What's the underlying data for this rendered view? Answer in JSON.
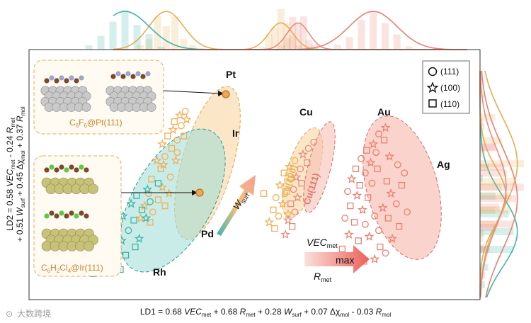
{
  "chart_data": {
    "type": "scatter",
    "title": "",
    "xlabel": "LD1 = 0.68 VECmet + 0.68 Rmet + 0.28 Wsurf + 0.07 Δχmol - 0.03 Rmol",
    "ylabel": "LD2 = 0.58 VECmet - 0.24 Rmet + 0.51 Wsurf + 0.45 Δχmol + 0.37 Rmol",
    "xlim": [
      0,
      100
    ],
    "ylim": [
      0,
      100
    ],
    "legend": {
      "placement": "top-right",
      "entries": [
        {
          "marker": "circle",
          "label": "(111)"
        },
        {
          "marker": "star",
          "label": "(100)"
        },
        {
          "marker": "square",
          "label": "(110)"
        }
      ]
    },
    "clusters": [
      {
        "name": "Pt",
        "color": "#f2c27a"
      },
      {
        "name": "Ir",
        "color": "#f2c27a"
      },
      {
        "name": "Rh",
        "color": "#6fcfc6"
      },
      {
        "name": "Pd",
        "color": "#6fcfc6"
      },
      {
        "name": "Cu",
        "color": "#f6c98a"
      },
      {
        "name": "Au",
        "color": "#f3a08f"
      },
      {
        "name": "Ag",
        "color": "#f3a08f"
      }
    ],
    "groups": [
      {
        "name": "Pt/Ir",
        "color": "#f0b055",
        "points": [
          {
            "x": 34.8,
            "y": 82,
            "m": "circle"
          },
          {
            "x": 33.6,
            "y": 80,
            "m": "star"
          },
          {
            "x": 32.4,
            "y": 77,
            "m": "square"
          },
          {
            "x": 33.9,
            "y": 75,
            "m": "circle"
          },
          {
            "x": 35.1,
            "y": 78,
            "m": "star"
          },
          {
            "x": 32.1,
            "y": 73,
            "m": "star"
          },
          {
            "x": 30.9,
            "y": 70,
            "m": "square"
          },
          {
            "x": 33.0,
            "y": 68,
            "m": "circle"
          },
          {
            "x": 29.7,
            "y": 66,
            "m": "star"
          },
          {
            "x": 31.8,
            "y": 64,
            "m": "square"
          },
          {
            "x": 34.5,
            "y": 70,
            "m": "square"
          },
          {
            "x": 30.3,
            "y": 60,
            "m": "circle"
          },
          {
            "x": 28.5,
            "y": 58,
            "m": "star"
          },
          {
            "x": 32.7,
            "y": 58,
            "m": "star"
          },
          {
            "x": 29.4,
            "y": 54,
            "m": "square"
          },
          {
            "x": 31.5,
            "y": 50,
            "m": "circle"
          },
          {
            "x": 27.3,
            "y": 49,
            "m": "square"
          },
          {
            "x": 29.7,
            "y": 45,
            "m": "star"
          },
          {
            "x": 26.7,
            "y": 42,
            "m": "circle"
          },
          {
            "x": 28.8,
            "y": 39,
            "m": "square"
          },
          {
            "x": 25.8,
            "y": 36,
            "m": "star"
          },
          {
            "x": 27.6,
            "y": 33,
            "m": "circle"
          },
          {
            "x": 30.3,
            "y": 36,
            "m": "square"
          },
          {
            "x": 24.9,
            "y": 30,
            "m": "star"
          },
          {
            "x": 27.0,
            "y": 28,
            "m": "square"
          },
          {
            "x": 31.2,
            "y": 42,
            "m": "star"
          },
          {
            "x": 33.0,
            "y": 62,
            "m": "circle"
          },
          {
            "x": 30.0,
            "y": 56,
            "m": "star"
          }
        ]
      },
      {
        "name": "Rh/Pd",
        "color": "#3fb5ac",
        "points": [
          {
            "x": 28.8,
            "y": 47,
            "m": "square"
          },
          {
            "x": 26.4,
            "y": 44,
            "m": "star"
          },
          {
            "x": 24.0,
            "y": 41,
            "m": "square"
          },
          {
            "x": 27.0,
            "y": 38,
            "m": "circle"
          },
          {
            "x": 22.8,
            "y": 37,
            "m": "star"
          },
          {
            "x": 25.2,
            "y": 34,
            "m": "square"
          },
          {
            "x": 21.0,
            "y": 31,
            "m": "star"
          },
          {
            "x": 23.4,
            "y": 29,
            "m": "square"
          },
          {
            "x": 19.8,
            "y": 27,
            "m": "star"
          },
          {
            "x": 22.2,
            "y": 24,
            "m": "circle"
          },
          {
            "x": 18.6,
            "y": 22,
            "m": "square"
          },
          {
            "x": 20.7,
            "y": 19,
            "m": "star"
          },
          {
            "x": 17.4,
            "y": 17,
            "m": "square"
          },
          {
            "x": 19.5,
            "y": 14,
            "m": "star"
          },
          {
            "x": 16.2,
            "y": 12,
            "m": "circle"
          },
          {
            "x": 18.3,
            "y": 9,
            "m": "square"
          },
          {
            "x": 15.3,
            "y": 7,
            "m": "square"
          },
          {
            "x": 21.6,
            "y": 12,
            "m": "square"
          },
          {
            "x": 24.6,
            "y": 20,
            "m": "star"
          },
          {
            "x": 20.4,
            "y": 5,
            "m": "square"
          },
          {
            "x": 26.1,
            "y": 30,
            "m": "star"
          },
          {
            "x": 23.7,
            "y": 16,
            "m": "square"
          },
          {
            "x": 17.1,
            "y": 25,
            "m": "star"
          },
          {
            "x": 14.4,
            "y": 3,
            "m": "square"
          }
        ]
      },
      {
        "name": "Cu(100)",
        "color": "#f0b055",
        "points": [
          {
            "x": 59.1,
            "y": 58,
            "m": "circle"
          },
          {
            "x": 57.9,
            "y": 55,
            "m": "star"
          },
          {
            "x": 56.7,
            "y": 52,
            "m": "square"
          },
          {
            "x": 58.2,
            "y": 49,
            "m": "circle"
          },
          {
            "x": 55.8,
            "y": 46,
            "m": "star"
          },
          {
            "x": 57.3,
            "y": 43,
            "m": "square"
          },
          {
            "x": 54.9,
            "y": 40,
            "m": "circle"
          },
          {
            "x": 56.4,
            "y": 37,
            "m": "star"
          },
          {
            "x": 54.3,
            "y": 34,
            "m": "square"
          },
          {
            "x": 55.5,
            "y": 31,
            "m": "circle"
          },
          {
            "x": 53.4,
            "y": 28,
            "m": "star"
          },
          {
            "x": 54.6,
            "y": 25,
            "m": "square"
          },
          {
            "x": 52.2,
            "y": 42,
            "m": "square"
          },
          {
            "x": 57.6,
            "y": 32,
            "m": "star"
          }
        ]
      },
      {
        "name": "Cu(111)",
        "color": "#e98a7f",
        "points": [
          {
            "x": 63.3,
            "y": 67,
            "m": "circle"
          },
          {
            "x": 62.1,
            "y": 64,
            "m": "circle"
          },
          {
            "x": 60.9,
            "y": 61,
            "m": "star"
          },
          {
            "x": 61.8,
            "y": 57,
            "m": "square"
          },
          {
            "x": 60.3,
            "y": 54,
            "m": "circle"
          },
          {
            "x": 59.4,
            "y": 50,
            "m": "star"
          },
          {
            "x": 60.6,
            "y": 47,
            "m": "square"
          },
          {
            "x": 58.8,
            "y": 44,
            "m": "circle"
          },
          {
            "x": 59.7,
            "y": 40,
            "m": "star"
          },
          {
            "x": 58.2,
            "y": 37,
            "m": "square"
          },
          {
            "x": 59.1,
            "y": 33,
            "m": "circle"
          },
          {
            "x": 57.6,
            "y": 29,
            "m": "star"
          },
          {
            "x": 58.5,
            "y": 26,
            "m": "square"
          },
          {
            "x": 57.0,
            "y": 22,
            "m": "star"
          }
        ]
      },
      {
        "name": "Au/Ag",
        "color": "#ec7f72",
        "points": [
          {
            "x": 79.2,
            "y": 74,
            "m": "star"
          },
          {
            "x": 77.7,
            "y": 71,
            "m": "circle"
          },
          {
            "x": 78.9,
            "y": 68,
            "m": "square"
          },
          {
            "x": 76.5,
            "y": 66,
            "m": "star"
          },
          {
            "x": 75.0,
            "y": 63,
            "m": "square"
          },
          {
            "x": 77.1,
            "y": 62,
            "m": "circle"
          },
          {
            "x": 73.8,
            "y": 59,
            "m": "circle"
          },
          {
            "x": 75.9,
            "y": 57,
            "m": "star"
          },
          {
            "x": 72.6,
            "y": 54,
            "m": "square"
          },
          {
            "x": 74.7,
            "y": 52,
            "m": "circle"
          },
          {
            "x": 77.4,
            "y": 54,
            "m": "square"
          },
          {
            "x": 71.7,
            "y": 49,
            "m": "star"
          },
          {
            "x": 73.5,
            "y": 46,
            "m": "square"
          },
          {
            "x": 76.2,
            "y": 47,
            "m": "circle"
          },
          {
            "x": 70.8,
            "y": 43,
            "m": "circle"
          },
          {
            "x": 72.9,
            "y": 41,
            "m": "star"
          },
          {
            "x": 75.3,
            "y": 40,
            "m": "square"
          },
          {
            "x": 71.4,
            "y": 36,
            "m": "square"
          },
          {
            "x": 74.1,
            "y": 34,
            "m": "star"
          },
          {
            "x": 70.2,
            "y": 30,
            "m": "circle"
          },
          {
            "x": 72.3,
            "y": 28,
            "m": "square"
          },
          {
            "x": 74.7,
            "y": 27,
            "m": "circle"
          },
          {
            "x": 71.1,
            "y": 22,
            "m": "star"
          },
          {
            "x": 73.2,
            "y": 19,
            "m": "square"
          },
          {
            "x": 75.6,
            "y": 21,
            "m": "star"
          },
          {
            "x": 77.7,
            "y": 24,
            "m": "circle"
          },
          {
            "x": 79.8,
            "y": 30,
            "m": "square"
          },
          {
            "x": 81.6,
            "y": 37,
            "m": "circle"
          },
          {
            "x": 80.4,
            "y": 42,
            "m": "star"
          },
          {
            "x": 82.8,
            "y": 46,
            "m": "square"
          },
          {
            "x": 78.6,
            "y": 35,
            "m": "star"
          },
          {
            "x": 76.8,
            "y": 31,
            "m": "circle"
          },
          {
            "x": 79.5,
            "y": 48,
            "m": "square"
          },
          {
            "x": 83.4,
            "y": 52,
            "m": "circle"
          },
          {
            "x": 81.9,
            "y": 56,
            "m": "circle"
          },
          {
            "x": 80.1,
            "y": 60,
            "m": "star"
          },
          {
            "x": 78.0,
            "y": 16,
            "m": "square"
          },
          {
            "x": 80.7,
            "y": 20,
            "m": "star"
          },
          {
            "x": 82.2,
            "y": 26,
            "m": "square"
          },
          {
            "x": 84.0,
            "y": 33,
            "m": "circle"
          },
          {
            "x": 69.6,
            "y": 15,
            "m": "square"
          },
          {
            "x": 72.0,
            "y": 12,
            "m": "circle"
          },
          {
            "x": 74.4,
            "y": 9,
            "m": "square"
          },
          {
            "x": 76.8,
            "y": 10,
            "m": "star"
          },
          {
            "x": 79.2,
            "y": 13,
            "m": "circle"
          }
        ]
      }
    ],
    "annotations": {
      "cu100": "Cu(100)",
      "cu111": "Cu(111)",
      "w": "W",
      "w_sub": "surf",
      "vec": "VEC",
      "vec_sub": "met",
      "max": "max",
      "r": "R",
      "r_sub": "met"
    },
    "insets": [
      {
        "caption_main": "C",
        "caption_s1": "6",
        "caption_mid": "F",
        "caption_s2": "6",
        "caption_tail": "@Pt(111)"
      },
      {
        "caption_main": "C",
        "caption_s1": "6",
        "caption_mid": "H",
        "caption_s2": "2",
        "caption_mid2": "Cl",
        "caption_s3": "4",
        "caption_tail": "@Ir(111)"
      }
    ],
    "marginal_densities": {
      "top": "distribution along LD1 (histograms and KDE curves per group)",
      "right": "distribution along LD2 (histograms and KDE curves per group)"
    }
  },
  "watermark": "大数跨境",
  "colors": {
    "teal": "#3fb5ac",
    "orange": "#f0b055",
    "salmon": "#ec7f72",
    "peach": "#f3a08f"
  }
}
